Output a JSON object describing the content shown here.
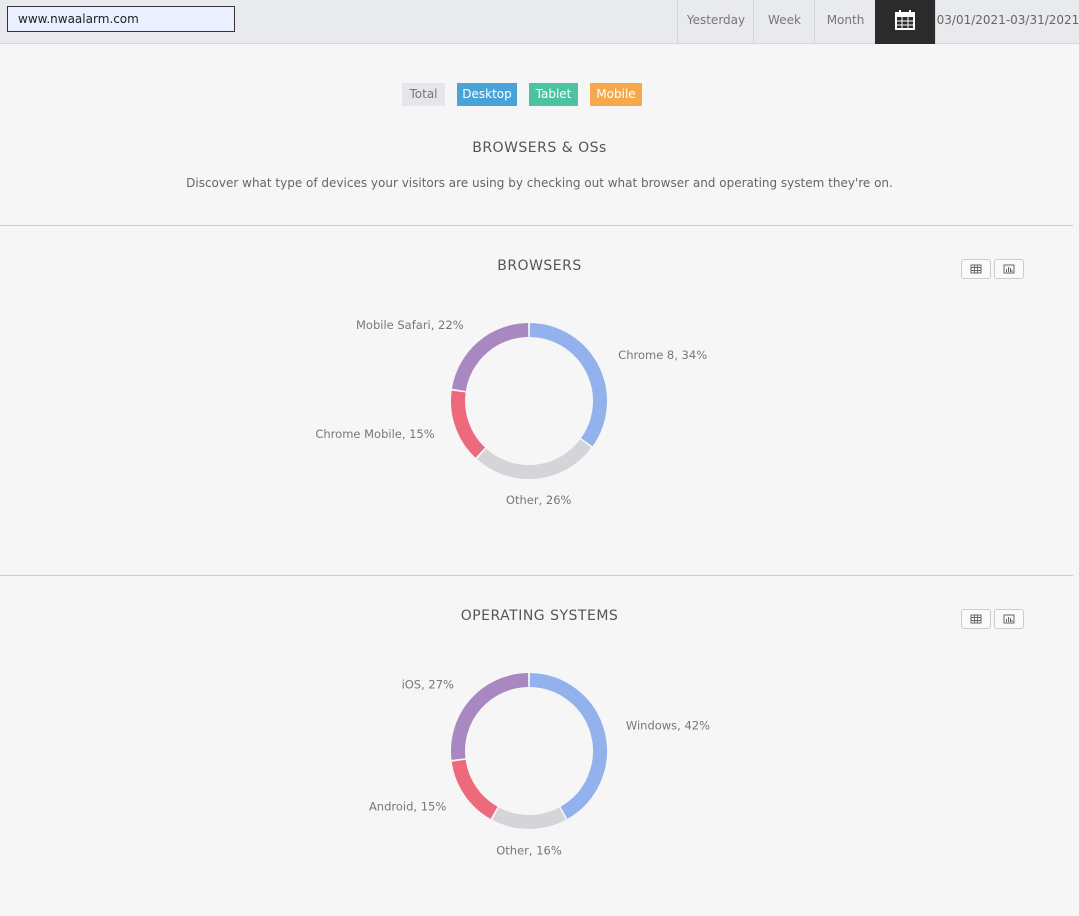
{
  "header": {
    "url": "www.nwaalarm.com",
    "nav": [
      "Yesterday",
      "Week",
      "Month"
    ],
    "date_range": "03/01/2021-03/31/2021"
  },
  "filters": [
    "Total",
    "Desktop",
    "Tablet",
    "Mobile"
  ],
  "section": {
    "title": "BROWSERS & OSs",
    "description": "Discover what type of devices your visitors are using by checking out what browser and operating system they're on."
  },
  "chart_data": [
    {
      "type": "donut",
      "title": "BROWSERS",
      "values": [
        34,
        26,
        15,
        22
      ],
      "value_labels": [
        "Chrome 8, 34%",
        "Other, 26%",
        "Chrome Mobile, 15%",
        "Mobile Safari, 22%"
      ],
      "colors": [
        "#93b1ec",
        "#d4d5d8",
        "#ec6a7b",
        "#a987c0"
      ]
    },
    {
      "type": "donut",
      "title": "OPERATING SYSTEMS",
      "values": [
        42,
        16,
        15,
        27
      ],
      "value_labels": [
        "Windows, 42%",
        "Other, 16%",
        "Android, 15%",
        "iOS, 27%"
      ],
      "colors": [
        "#93b1ec",
        "#d4d5d8",
        "#ec6a7b",
        "#a987c0"
      ]
    }
  ]
}
